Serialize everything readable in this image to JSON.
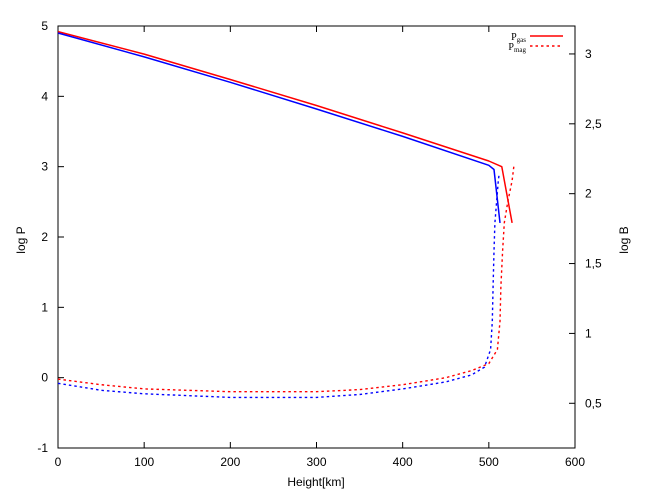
{
  "chart_data": {
    "type": "line",
    "title": "",
    "xlabel": "Height[km]",
    "ylabel": "log P",
    "y2label": "log B",
    "xlim": [
      0,
      600
    ],
    "ylim": [
      -1,
      5
    ],
    "y2lim": [
      0.18,
      3.2
    ],
    "xticks": [
      0,
      100,
      200,
      300,
      400,
      500,
      600
    ],
    "yticks": [
      -1,
      0,
      1,
      2,
      3,
      4,
      5
    ],
    "y2ticks": [
      0.5,
      1,
      1.5,
      2,
      2.5,
      3
    ],
    "x_tick_labels": [
      "0",
      "100",
      "200",
      "300",
      "400",
      "500",
      "600"
    ],
    "y_tick_labels": [
      "-1",
      "0",
      "1",
      "2",
      "3",
      "4",
      "5"
    ],
    "y2_tick_labels": [
      "0,5",
      "1",
      "1,5",
      "2",
      "2,5",
      "3"
    ],
    "grid": false,
    "legend_position": "top-right",
    "legend": [
      {
        "main": "P",
        "sub": "gas",
        "style": "solid",
        "color": "#ff0000"
      },
      {
        "main": "P",
        "sub": "mag",
        "style": "dotted",
        "color": "#ff0000"
      }
    ],
    "series": [
      {
        "style": "solid",
        "color": "#ff0000",
        "axis": "left",
        "x": [
          0,
          100,
          200,
          300,
          400,
          500,
          515,
          527
        ],
        "y": [
          4.92,
          4.6,
          4.24,
          3.87,
          3.48,
          3.08,
          3.0,
          2.2
        ]
      },
      {
        "style": "solid",
        "color": "#0000ff",
        "axis": "left",
        "x": [
          0,
          100,
          200,
          300,
          400,
          500,
          506,
          513
        ],
        "y": [
          4.9,
          4.56,
          4.2,
          3.82,
          3.43,
          3.02,
          2.96,
          2.2
        ]
      },
      {
        "style": "dotted",
        "color": "#ff0000",
        "axis": "left",
        "x": [
          0,
          50,
          100,
          200,
          300,
          350,
          400,
          450,
          480,
          500,
          510,
          513,
          514,
          516,
          518,
          522,
          527,
          529
        ],
        "y": [
          -0.02,
          -0.1,
          -0.16,
          -0.2,
          -0.2,
          -0.17,
          -0.1,
          0.0,
          0.1,
          0.2,
          0.4,
          0.8,
          1.3,
          1.8,
          2.2,
          2.5,
          2.8,
          3.0
        ]
      },
      {
        "style": "dotted",
        "color": "#0000ff",
        "axis": "left",
        "x": [
          0,
          50,
          100,
          200,
          300,
          350,
          400,
          450,
          480,
          495,
          502,
          504,
          505,
          506,
          507,
          509,
          511,
          512
        ],
        "y": [
          -0.08,
          -0.18,
          -0.23,
          -0.28,
          -0.28,
          -0.24,
          -0.16,
          -0.06,
          0.04,
          0.15,
          0.4,
          0.8,
          1.3,
          1.8,
          2.2,
          2.5,
          2.8,
          2.9
        ]
      }
    ]
  }
}
